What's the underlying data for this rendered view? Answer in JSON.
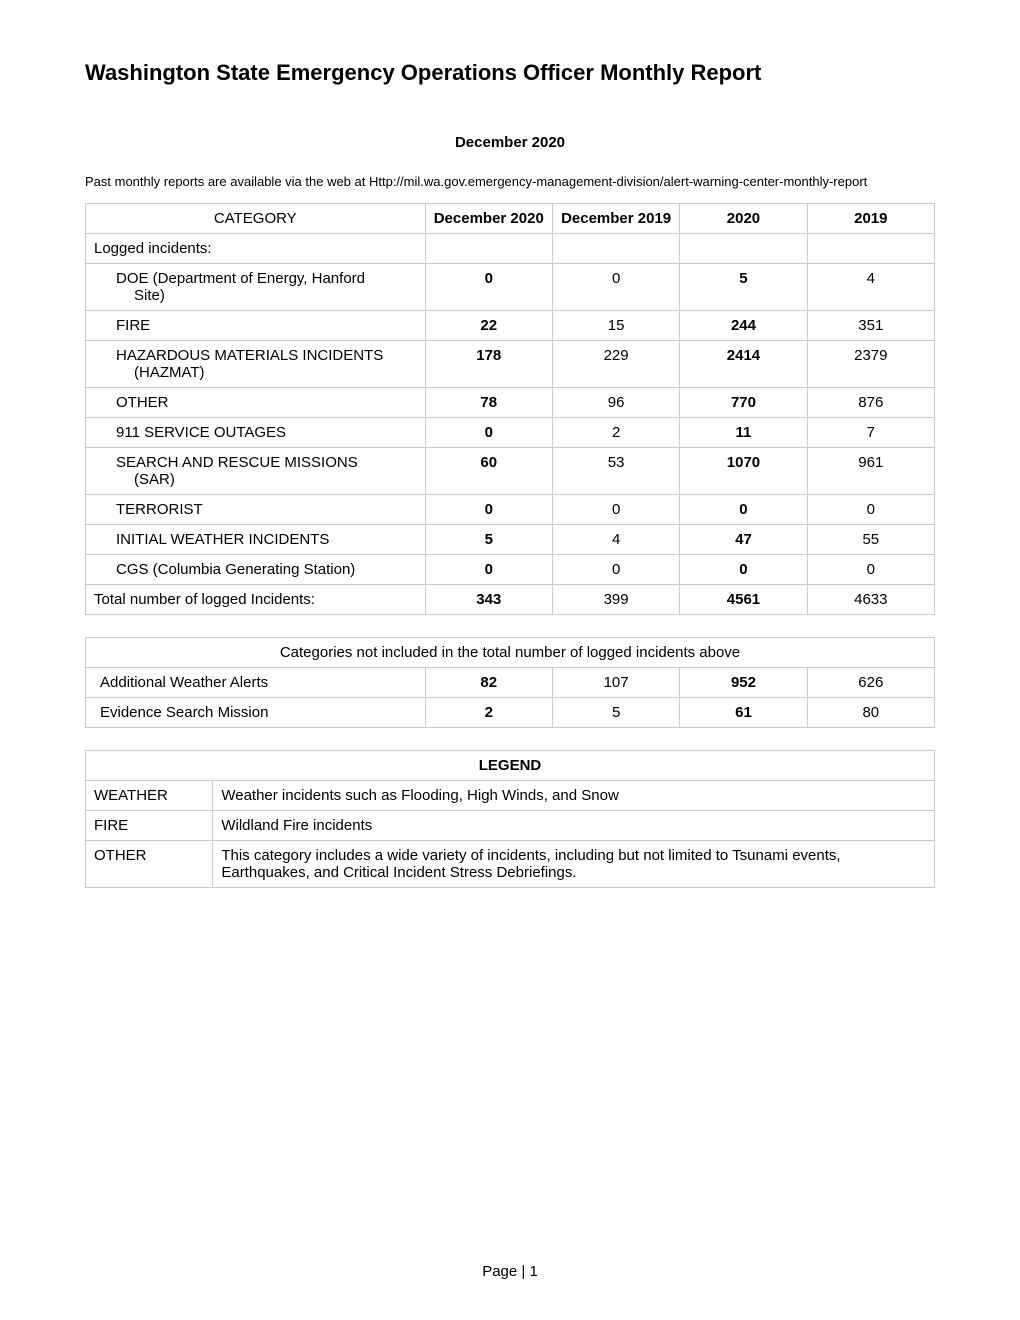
{
  "title": "Washington State Emergency Operations Officer Monthly Report",
  "subtitle": "December 2020",
  "intro": "Past monthly reports are available via the web at Http://mil.wa.gov.emergency-management-division/alert-warning-center-monthly-report",
  "mainTable": {
    "headers": {
      "category": "CATEGORY",
      "col1": "December 2020",
      "col2": "December 2019",
      "col3": "2020",
      "col4": "2019"
    },
    "sectionLabel": "Logged incidents:",
    "rows": [
      {
        "label": "DOE (Department of Energy, Hanford",
        "sublabel": "Site)",
        "v1": "0",
        "v2": "0",
        "v3": "5",
        "v4": "4"
      },
      {
        "label": "FIRE",
        "v1": "22",
        "v2": "15",
        "v3": "244",
        "v4": "351"
      },
      {
        "label": "HAZARDOUS MATERIALS INCIDENTS",
        "sublabel": "(HAZMAT)",
        "v1": "178",
        "v2": "229",
        "v3": "2414",
        "v4": "2379"
      },
      {
        "label": "OTHER",
        "v1": "78",
        "v2": "96",
        "v3": "770",
        "v4": "876"
      },
      {
        "label": "911 SERVICE OUTAGES",
        "v1": "0",
        "v2": "2",
        "v3": "11",
        "v4": "7"
      },
      {
        "label": "SEARCH AND RESCUE MISSIONS",
        "sublabel": "(SAR)",
        "v1": "60",
        "v2": "53",
        "v3": "1070",
        "v4": "961"
      },
      {
        "label": "TERRORIST",
        "v1": "0",
        "v2": "0",
        "v3": "0",
        "v4": "0"
      },
      {
        "label": "INITIAL WEATHER INCIDENTS",
        "v1": "5",
        "v2": "4",
        "v3": "47",
        "v4": "55"
      },
      {
        "label": "CGS (Columbia Generating Station)",
        "v1": "0",
        "v2": "0",
        "v3": "0",
        "v4": "0"
      }
    ],
    "totalRow": {
      "label": "Total number of logged Incidents:",
      "v1": "343",
      "v2": "399",
      "v3": "4561",
      "v4": "4633"
    }
  },
  "excludedTable": {
    "header": "Categories not included in the total number of logged incidents above",
    "rows": [
      {
        "label": "Additional Weather Alerts",
        "v1": "82",
        "v2": "107",
        "v3": "952",
        "v4": "626"
      },
      {
        "label": "Evidence Search Mission",
        "v1": "2",
        "v2": "5",
        "v3": "61",
        "v4": "80"
      }
    ]
  },
  "legend": {
    "header": "LEGEND",
    "rows": [
      {
        "term": "WEATHER",
        "def": "Weather incidents such as Flooding, High Winds, and Snow"
      },
      {
        "term": "FIRE",
        "def": "Wildland Fire incidents"
      },
      {
        "term": "OTHER",
        "def": "This category includes a wide variety of incidents, including but not limited to Tsunami events, Earthquakes, and Critical Incident Stress Debriefings."
      }
    ]
  },
  "footer": "Page | 1"
}
